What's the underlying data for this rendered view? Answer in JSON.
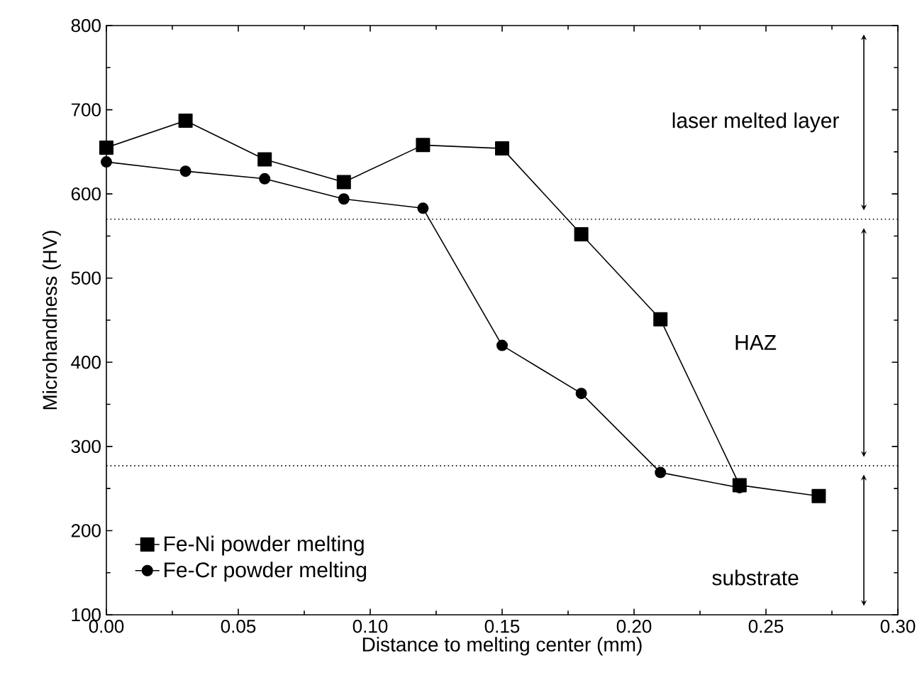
{
  "chart_data": {
    "type": "line",
    "xlabel": "Distance to melting center (mm)",
    "ylabel": "Microhandness (HV)",
    "xlim": [
      0,
      0.3
    ],
    "ylim": [
      100,
      800
    ],
    "xticks": [
      {
        "value": 0,
        "label": "0.00"
      },
      {
        "value": 0.05,
        "label": "0.05"
      },
      {
        "value": 0.1,
        "label": "0.10"
      },
      {
        "value": 0.15,
        "label": "0.15"
      },
      {
        "value": 0.2,
        "label": "0.20"
      },
      {
        "value": 0.25,
        "label": "0.25"
      },
      {
        "value": 0.3,
        "label": "0.30"
      }
    ],
    "yticks": [
      100,
      200,
      300,
      400,
      500,
      600,
      700,
      800
    ],
    "legend": "bottom left",
    "grid": false,
    "series": [
      {
        "name": "Fe-Ni powder melting",
        "color": "#000000",
        "marker": "square",
        "x": [
          0,
          0.03,
          0.06,
          0.09,
          0.12,
          0.15,
          0.18,
          0.21,
          0.24,
          0.27
        ],
        "values": [
          655,
          687,
          641,
          614,
          658,
          654,
          552,
          451,
          254,
          241
        ]
      },
      {
        "name": "Fe-Cr powder melting",
        "color": "#000000",
        "marker": "circle",
        "x": [
          0,
          0.03,
          0.06,
          0.09,
          0.12,
          0.15,
          0.18,
          0.21,
          0.24
        ],
        "values": [
          638,
          627,
          618,
          594,
          583,
          420,
          363,
          269,
          251
        ]
      }
    ],
    "ref_lines": [
      {
        "axis": "y",
        "value": 570,
        "line_style": "dotted"
      },
      {
        "axis": "y",
        "value": 277,
        "line_style": "dotted"
      }
    ],
    "annotations": [
      "laser melted layer",
      "HAZ",
      "substrate"
    ]
  }
}
